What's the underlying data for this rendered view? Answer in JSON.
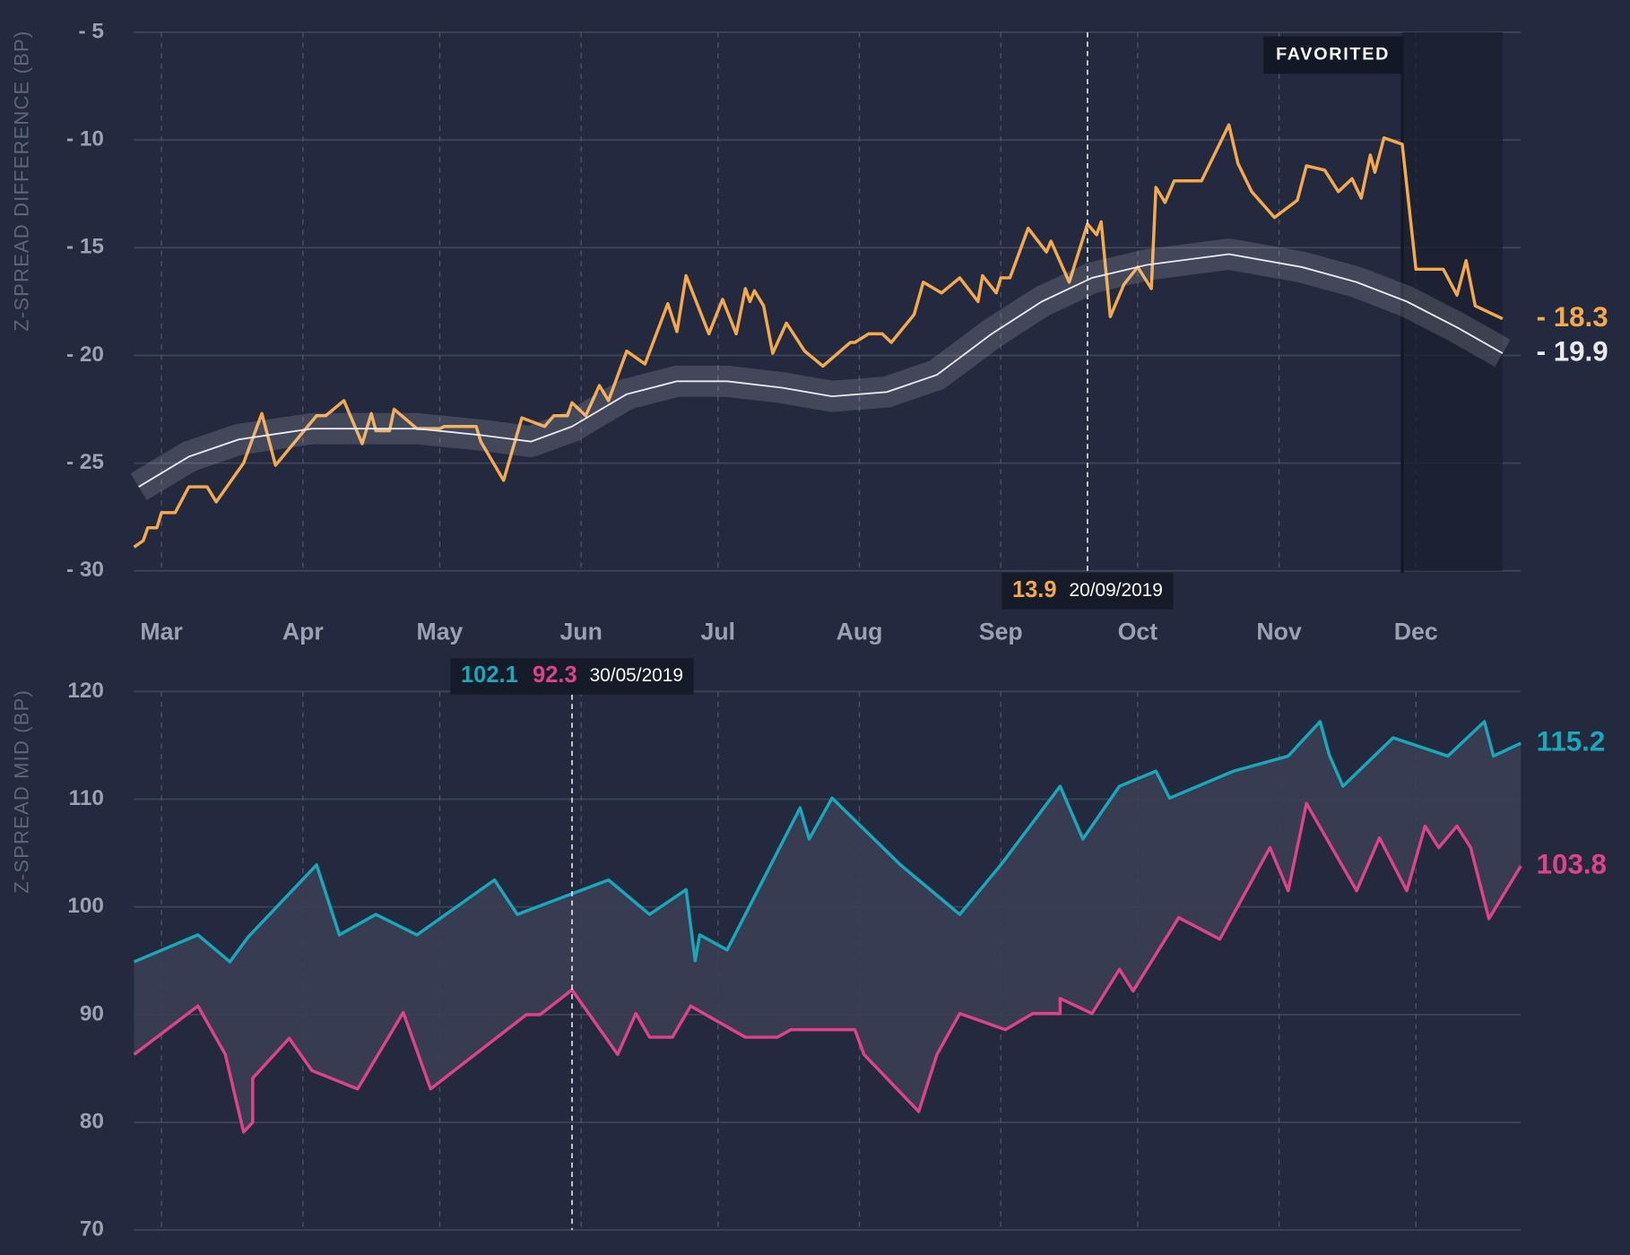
{
  "chart_data": [
    {
      "type": "line",
      "ylabel": "Z-SPREAD DIFFERENCE  (BP)",
      "xlim": [
        "2019-02-23",
        "2019-12-24"
      ],
      "xticks": [
        {
          "value": "2019-03-01",
          "label": "Mar"
        },
        {
          "value": "2019-04-01",
          "label": "Apr"
        },
        {
          "value": "2019-05-01",
          "label": "May"
        },
        {
          "value": "2019-06-01",
          "label": "Jun"
        },
        {
          "value": "2019-07-01",
          "label": "Jul"
        },
        {
          "value": "2019-08-01",
          "label": "Aug"
        },
        {
          "value": "2019-09-01",
          "label": "Sep"
        },
        {
          "value": "2019-10-01",
          "label": "Oct"
        },
        {
          "value": "2019-11-01",
          "label": "Nov"
        },
        {
          "value": "2019-12-01",
          "label": "Dec"
        }
      ],
      "ylim": [
        -30,
        -5
      ],
      "yticks": [
        {
          "value": -5,
          "label": "- 5"
        },
        {
          "value": -10,
          "label": "- 10"
        },
        {
          "value": -15,
          "label": "- 15"
        },
        {
          "value": -20,
          "label": "- 20"
        },
        {
          "value": -25,
          "label": "- 25"
        },
        {
          "value": -30,
          "label": "- 30"
        }
      ],
      "grid": true,
      "highlight": {
        "label": "FAVORITED",
        "start": "2019-11-28"
      },
      "tooltip": {
        "values": [
          "13.9"
        ],
        "date": "20/09/2019"
      },
      "series": [
        {
          "color": "#f5a94a",
          "end_label": "- 18.3",
          "x": [
            "2019-02-23",
            "2019-02-25",
            "2019-02-26",
            "2019-02-28",
            "2019-03-01",
            "2019-03-04",
            "2019-03-07",
            "2019-03-11",
            "2019-03-13",
            "2019-03-19",
            "2019-03-23",
            "2019-03-26",
            "2019-04-04",
            "2019-04-06",
            "2019-04-10",
            "2019-04-14",
            "2019-04-16",
            "2019-04-17",
            "2019-04-20",
            "2019-04-21",
            "2019-04-26",
            "2019-05-01",
            "2019-05-02",
            "2019-05-09",
            "2019-05-10",
            "2019-05-15",
            "2019-05-19",
            "2019-05-24",
            "2019-05-26",
            "2019-05-29",
            "2019-05-30",
            "2019-06-02",
            "2019-06-05",
            "2019-06-07",
            "2019-06-11",
            "2019-06-15",
            "2019-06-20",
            "2019-06-22",
            "2019-06-24",
            "2019-06-29",
            "2019-07-02",
            "2019-07-05",
            "2019-07-07",
            "2019-07-08",
            "2019-07-09",
            "2019-07-11",
            "2019-07-13",
            "2019-07-16",
            "2019-07-20",
            "2019-07-24",
            "2019-07-30",
            "2019-07-31",
            "2019-08-03",
            "2019-08-06",
            "2019-08-08",
            "2019-08-13",
            "2019-08-15",
            "2019-08-19",
            "2019-08-23",
            "2019-08-27",
            "2019-08-28",
            "2019-08-31",
            "2019-09-01",
            "2019-09-03",
            "2019-09-07",
            "2019-09-11",
            "2019-09-12",
            "2019-09-16",
            "2019-09-20",
            "2019-09-22",
            "2019-09-23",
            "2019-09-25",
            "2019-09-28",
            "2019-10-01",
            "2019-10-04",
            "2019-10-05",
            "2019-10-07",
            "2019-10-09",
            "2019-10-15",
            "2019-10-21",
            "2019-10-23",
            "2019-10-26",
            "2019-10-31",
            "2019-11-05",
            "2019-11-07",
            "2019-11-11",
            "2019-11-14",
            "2019-11-17",
            "2019-11-19",
            "2019-11-21",
            "2019-11-22",
            "2019-11-24",
            "2019-11-28",
            "2019-12-01",
            "2019-12-07",
            "2019-12-10",
            "2019-12-12",
            "2019-12-14",
            "2019-12-20"
          ],
          "values": [
            -28.9,
            -28.6,
            -28.0,
            -28.0,
            -27.3,
            -27.3,
            -26.1,
            -26.1,
            -26.8,
            -25.0,
            -22.7,
            -25.1,
            -22.8,
            -22.8,
            -22.1,
            -24.1,
            -22.7,
            -23.5,
            -23.5,
            -22.5,
            -23.4,
            -23.4,
            -23.3,
            -23.3,
            -24.0,
            -25.8,
            -22.9,
            -23.3,
            -22.8,
            -22.8,
            -22.2,
            -22.8,
            -21.4,
            -22.1,
            -19.8,
            -20.4,
            -17.6,
            -18.9,
            -16.3,
            -19.0,
            -17.4,
            -19.0,
            -16.9,
            -17.5,
            -17.0,
            -17.7,
            -19.9,
            -18.5,
            -19.8,
            -20.5,
            -19.4,
            -19.4,
            -19.0,
            -19.0,
            -19.4,
            -18.1,
            -16.6,
            -17.1,
            -16.4,
            -17.5,
            -16.3,
            -17.1,
            -16.4,
            -16.4,
            -14.1,
            -15.2,
            -14.7,
            -16.6,
            -13.9,
            -14.4,
            -13.8,
            -18.2,
            -16.7,
            -15.9,
            -16.9,
            -12.2,
            -12.9,
            -11.9,
            -11.9,
            -9.3,
            -11.1,
            -12.4,
            -13.6,
            -12.8,
            -11.2,
            -11.4,
            -12.4,
            -11.8,
            -12.7,
            -10.7,
            -11.5,
            -9.9,
            -10.2,
            -16.0,
            -16.0,
            -17.2,
            -15.6,
            -17.7,
            -18.3
          ]
        },
        {
          "color": "#e9e9ef",
          "band": true,
          "end_label": "- 19.9",
          "x": [
            "2019-02-24",
            "2019-03-07",
            "2019-03-18",
            "2019-04-03",
            "2019-04-26",
            "2019-05-10",
            "2019-05-21",
            "2019-05-30",
            "2019-06-11",
            "2019-06-22",
            "2019-07-03",
            "2019-07-15",
            "2019-07-26",
            "2019-08-07",
            "2019-08-18",
            "2019-08-30",
            "2019-09-10",
            "2019-09-21",
            "2019-10-03",
            "2019-10-21",
            "2019-11-06",
            "2019-11-18",
            "2019-11-29",
            "2019-12-10",
            "2019-12-20"
          ],
          "values": [
            -26.1,
            -24.7,
            -23.9,
            -23.4,
            -23.4,
            -23.7,
            -24.0,
            -23.3,
            -21.8,
            -21.2,
            -21.2,
            -21.5,
            -21.9,
            -21.7,
            -20.9,
            -19.0,
            -17.5,
            -16.4,
            -15.8,
            -15.3,
            -15.9,
            -16.6,
            -17.5,
            -18.7,
            -19.9
          ]
        }
      ]
    },
    {
      "type": "line",
      "ylabel": "Z-SPREAD MID (BP)",
      "xlim": [
        "2019-02-23",
        "2019-12-24"
      ],
      "xticks": [
        "2019-03-01",
        "2019-04-01",
        "2019-05-01",
        "2019-06-01",
        "2019-07-01",
        "2019-08-01",
        "2019-09-01",
        "2019-10-01",
        "2019-11-01",
        "2019-12-01"
      ],
      "ylim": [
        70,
        120
      ],
      "yticks": [
        120,
        110,
        100,
        90,
        80,
        70
      ],
      "grid": true,
      "fill_between": true,
      "tooltip": {
        "values": [
          "102.1",
          "92.3"
        ],
        "date": "30/05/2019"
      },
      "series": [
        {
          "color": "#19a8b8",
          "end_label": "115.2",
          "x": [
            "2019-02-23",
            "2019-03-09",
            "2019-03-16",
            "2019-03-20",
            "2019-04-04",
            "2019-04-09",
            "2019-04-17",
            "2019-04-26",
            "2019-05-13",
            "2019-05-18",
            "2019-06-07",
            "2019-06-16",
            "2019-06-24",
            "2019-06-26",
            "2019-06-27",
            "2019-07-03",
            "2019-07-19",
            "2019-07-21",
            "2019-07-26",
            "2019-08-10",
            "2019-08-23",
            "2019-09-01",
            "2019-09-14",
            "2019-09-19",
            "2019-09-27",
            "2019-10-05",
            "2019-10-08",
            "2019-10-22",
            "2019-11-03",
            "2019-11-10",
            "2019-11-12",
            "2019-11-15",
            "2019-11-26",
            "2019-12-08",
            "2019-12-16",
            "2019-12-18",
            "2019-12-24"
          ],
          "values": [
            94.9,
            97.4,
            94.9,
            97.2,
            103.9,
            97.4,
            99.3,
            97.4,
            102.5,
            99.3,
            102.5,
            99.3,
            101.6,
            95.0,
            97.4,
            96.0,
            109.2,
            106.3,
            110.1,
            103.9,
            99.3,
            103.9,
            111.2,
            106.3,
            111.2,
            112.6,
            110.1,
            112.6,
            114.0,
            117.2,
            114.1,
            111.2,
            115.7,
            114.0,
            117.2,
            114.0,
            115.2
          ]
        },
        {
          "color": "#e0428a",
          "end_label": "103.8",
          "x": [
            "2019-02-23",
            "2019-03-09",
            "2019-03-15",
            "2019-03-19",
            "2019-03-21",
            "2019-03-21",
            "2019-03-29",
            "2019-04-03",
            "2019-04-13",
            "2019-04-23",
            "2019-04-29",
            "2019-05-20",
            "2019-05-23",
            "2019-05-30",
            "2019-06-09",
            "2019-06-13",
            "2019-06-16",
            "2019-06-21",
            "2019-06-25",
            "2019-07-07",
            "2019-07-14",
            "2019-07-17",
            "2019-07-31",
            "2019-08-02",
            "2019-08-14",
            "2019-08-18",
            "2019-08-23",
            "2019-09-02",
            "2019-09-08",
            "2019-09-14",
            "2019-09-14",
            "2019-09-21",
            "2019-09-27",
            "2019-09-30",
            "2019-10-10",
            "2019-10-19",
            "2019-10-30",
            "2019-11-03",
            "2019-11-07",
            "2019-11-18",
            "2019-11-23",
            "2019-11-29",
            "2019-12-03",
            "2019-12-06",
            "2019-12-10",
            "2019-12-13",
            "2019-12-17",
            "2019-12-24"
          ],
          "values": [
            86.3,
            90.8,
            86.3,
            79.1,
            80.0,
            84.1,
            87.8,
            84.8,
            83.1,
            90.2,
            83.1,
            90.0,
            90.0,
            92.3,
            86.3,
            90.1,
            87.9,
            87.9,
            90.8,
            87.9,
            87.9,
            88.6,
            88.6,
            86.3,
            81.0,
            86.3,
            90.1,
            88.6,
            90.1,
            90.1,
            91.5,
            90.1,
            94.2,
            92.2,
            99.0,
            97.0,
            105.5,
            101.5,
            109.6,
            101.5,
            106.4,
            101.5,
            107.5,
            105.5,
            107.5,
            105.5,
            98.9,
            103.8
          ]
        }
      ]
    }
  ]
}
